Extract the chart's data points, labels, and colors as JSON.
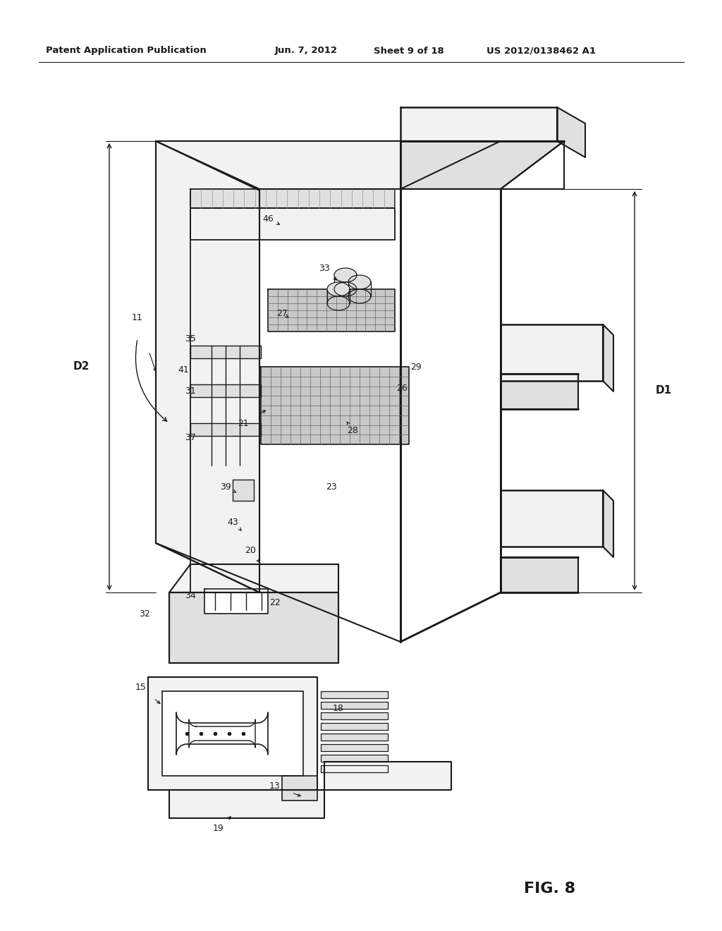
{
  "background_color": "#ffffff",
  "header_text": "Patent Application Publication",
  "header_date": "Jun. 7, 2012",
  "header_sheet": "Sheet 9 of 18",
  "header_patent": "US 2012/0138462 A1",
  "figure_label": "FIG. 8",
  "text_color": "#1a1a1a",
  "line_color": "#1a1a1a",
  "fill_light": "#f2f2f2",
  "fill_mid": "#e0e0e0",
  "fill_dark": "#c8c8c8",
  "fill_white": "#ffffff"
}
